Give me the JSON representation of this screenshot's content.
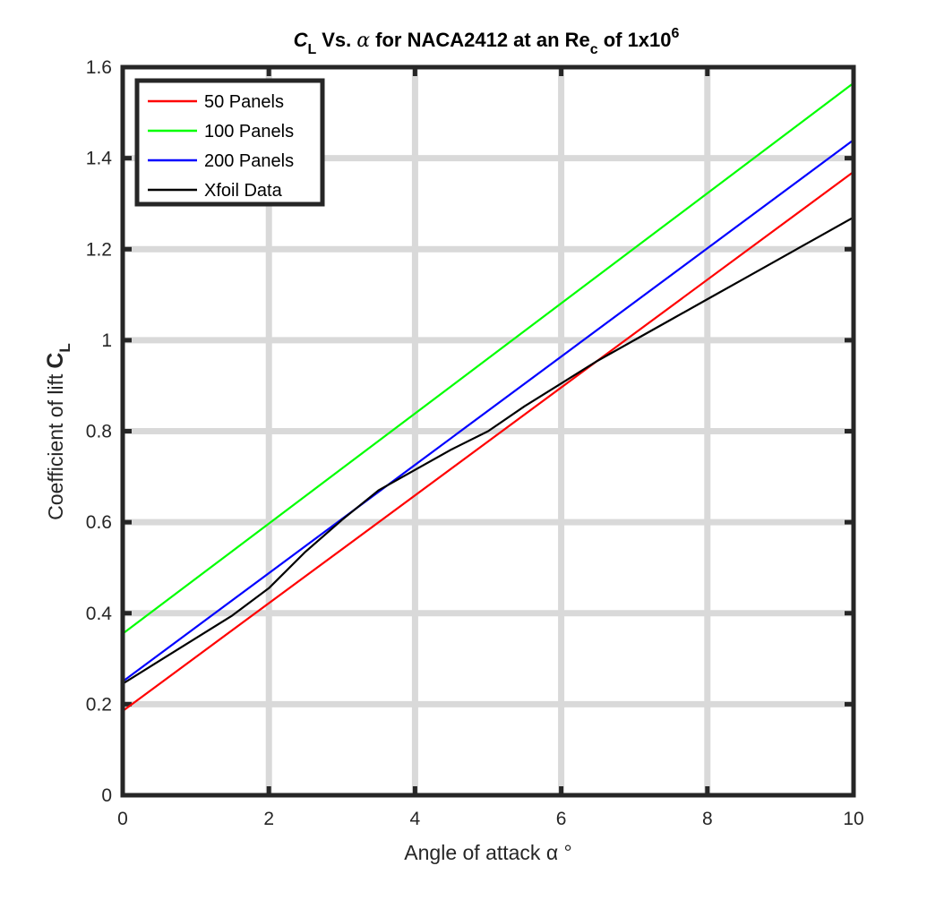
{
  "chart_data": {
    "type": "line",
    "title": {
      "cl_symbol": "C",
      "cl_sub": "L",
      "vs": "Vs.",
      "alpha": "α",
      "middle": "for NACA2412 at an Re",
      "re_sub": "c",
      "of": "of 1x10",
      "exponent": "6"
    },
    "xlabel": "Angle of attack α °",
    "ylabel": {
      "text": "Coefficient of lift",
      "symbol": "C",
      "sub": "L"
    },
    "xlim": [
      0,
      10
    ],
    "ylim": [
      0,
      1.6
    ],
    "x_ticks": [
      0,
      2,
      4,
      6,
      8,
      10
    ],
    "y_ticks": [
      0,
      0.2,
      0.4,
      0.6,
      0.8,
      1,
      1.2,
      1.4,
      1.6
    ],
    "x_tick_labels": [
      "0",
      "2",
      "4",
      "6",
      "8",
      "10"
    ],
    "y_tick_labels": [
      "0",
      "0.2",
      "0.4",
      "0.6",
      "0.8",
      "1",
      "1.2",
      "1.4",
      "1.6"
    ],
    "grid": true,
    "legend_position": "top-left",
    "series": [
      {
        "name": "50 Panels",
        "color": "#ff0000",
        "x": [
          0,
          10
        ],
        "y": [
          0.185,
          1.37
        ]
      },
      {
        "name": "100 Panels",
        "color": "#00ff00",
        "x": [
          0,
          10
        ],
        "y": [
          0.355,
          1.565
        ]
      },
      {
        "name": "200 Panels",
        "color": "#0000ff",
        "x": [
          0,
          10
        ],
        "y": [
          0.25,
          1.44
        ]
      },
      {
        "name": "Xfoil Data",
        "color": "#000000",
        "x": [
          0,
          0.5,
          1,
          1.5,
          2,
          2.5,
          3,
          3.5,
          4,
          4.5,
          5,
          5.5,
          6,
          6.5,
          7,
          7.5,
          8,
          8.5,
          9,
          9.5,
          10
        ],
        "y": [
          0.245,
          0.295,
          0.345,
          0.395,
          0.455,
          0.535,
          0.605,
          0.67,
          0.715,
          0.76,
          0.8,
          0.855,
          0.905,
          0.955,
          1.0,
          1.045,
          1.09,
          1.135,
          1.18,
          1.225,
          1.27
        ]
      }
    ]
  }
}
